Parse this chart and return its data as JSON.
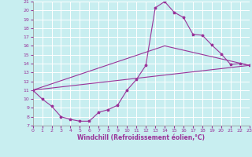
{
  "title": "",
  "xlabel": "Windchill (Refroidissement éolien,°C)",
  "ylabel": "",
  "xlim": [
    0,
    23
  ],
  "ylim": [
    7,
    21
  ],
  "xticks": [
    0,
    1,
    2,
    3,
    4,
    5,
    6,
    7,
    8,
    9,
    10,
    11,
    12,
    13,
    14,
    15,
    16,
    17,
    18,
    19,
    20,
    21,
    22,
    23
  ],
  "yticks": [
    7,
    8,
    9,
    10,
    11,
    12,
    13,
    14,
    15,
    16,
    17,
    18,
    19,
    20,
    21
  ],
  "bg_color": "#c8eef0",
  "line_color": "#993399",
  "grid_color": "#ffffff",
  "line1_x": [
    0,
    1,
    2,
    3,
    4,
    5,
    6,
    7,
    8,
    9,
    10,
    11,
    12,
    13,
    14,
    15,
    16,
    17,
    18,
    19,
    20,
    21,
    22,
    23
  ],
  "line1_y": [
    11.0,
    10.0,
    9.2,
    8.0,
    7.7,
    7.5,
    7.5,
    8.5,
    8.8,
    9.3,
    11.0,
    12.2,
    13.8,
    20.3,
    21.0,
    19.8,
    19.2,
    17.3,
    17.2,
    16.1,
    15.1,
    13.9,
    14.0,
    13.8
  ],
  "line2_x": [
    0,
    23
  ],
  "line2_y": [
    11.0,
    13.8
  ],
  "line3_x": [
    0,
    14,
    23
  ],
  "line3_y": [
    11.0,
    16.0,
    13.8
  ]
}
